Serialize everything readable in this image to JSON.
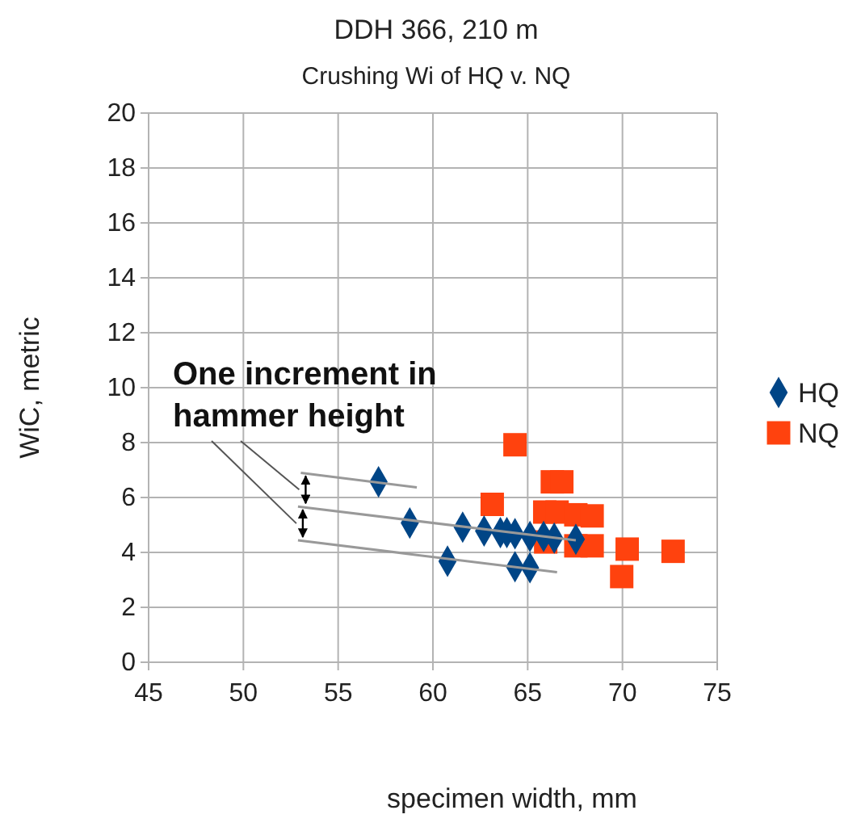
{
  "chart_data": {
    "type": "scatter",
    "title": "DDH 366, 210 m",
    "subtitle": "Crushing Wi of HQ v. NQ",
    "xlabel": "specimen width, mm",
    "ylabel": "WiC, metric",
    "xlim": [
      45,
      75
    ],
    "xticks": [
      45,
      50,
      55,
      60,
      65,
      70,
      75
    ],
    "ylim": [
      0,
      20
    ],
    "yticks": [
      0,
      2,
      4,
      6,
      8,
      10,
      12,
      14,
      16,
      18,
      20
    ],
    "grid": true,
    "legend": "right",
    "annotations": [
      "One increment in hammer height"
    ],
    "series": [
      {
        "name": "HQ",
        "color": "#004586",
        "marker": "diamond",
        "x": [
          57.13,
          58.78,
          60.77,
          61.57,
          62.7,
          63.56,
          63.9,
          64.33,
          64.33,
          65.12,
          65.12,
          65.84,
          66.4,
          67.54
        ],
        "values": [
          6.57,
          5.07,
          3.68,
          4.92,
          4.78,
          4.72,
          4.72,
          4.68,
          3.48,
          4.58,
          3.44,
          4.58,
          4.52,
          4.48
        ]
      },
      {
        "name": "NQ",
        "color": "#ff420e",
        "marker": "square",
        "x": [
          64.33,
          63.13,
          65.9,
          66.3,
          66.8,
          66.55,
          67.54,
          68.4,
          65.95,
          67.54,
          68.4,
          70.25,
          69.96,
          72.67
        ],
        "values": [
          7.92,
          5.75,
          5.47,
          6.57,
          6.57,
          5.47,
          5.37,
          5.33,
          4.38,
          4.24,
          4.24,
          4.12,
          3.12,
          4.04
        ]
      },
      {
        "type": "line",
        "color": "#999999",
        "marker": "none",
        "x": [
          53.03,
          59.15
        ],
        "values": [
          6.9,
          6.37
        ]
      },
      {
        "type": "line",
        "color": "#999999",
        "marker": "none",
        "x": [
          52.88,
          67.54
        ],
        "values": [
          5.67,
          4.44
        ]
      },
      {
        "type": "line",
        "color": "#999999",
        "marker": "none",
        "x": [
          52.88,
          66.55
        ],
        "values": [
          4.44,
          3.28
        ]
      }
    ]
  }
}
